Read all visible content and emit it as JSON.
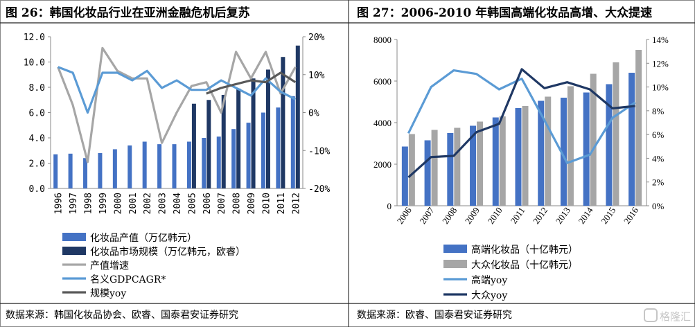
{
  "charts": [
    {
      "title": "图 26：韩国化妆品行业在亚洲金融危机后复苏",
      "source": "数据来源：韩国化妆品协会、欧睿、国泰君安证券研究",
      "colors": {
        "production": "#4472c4",
        "market": "#1f3864",
        "production_growth": "#a6a6a6",
        "gdp_cagr": "#5b9bd5",
        "market_yoy": "#595959"
      },
      "left_ticks": [
        "12.0",
        "10.0",
        "8.0",
        "6.0",
        "4.0",
        "2.0",
        "0.0"
      ],
      "right_ticks": [
        "20%",
        "10%",
        "0%",
        "-10%",
        "-20%"
      ]
    },
    {
      "title": "图 27：2006-2010 年韩国高端化妆品高增、大众提速",
      "source": "数据来源：欧睿、国泰君安证券研究",
      "colors": {
        "premium": "#4472c4",
        "mass": "#a6a6a6",
        "premium_yoy": "#5b9bd5",
        "mass_yoy": "#1f3864"
      },
      "left_ticks": [
        "8000",
        "6000",
        "4000",
        "2000",
        "0"
      ],
      "right_ticks": [
        "14%",
        "12%",
        "10%",
        "8%",
        "6%",
        "4%",
        "2%",
        "0%"
      ]
    }
  ],
  "watermark": "格隆汇",
  "chart_data": [
    {
      "type": "bar",
      "title": "图 26：韩国化妆品行业在亚洲金融危机后复苏",
      "categories": [
        "1996",
        "1997",
        "1998",
        "1999",
        "2000",
        "2001",
        "2002",
        "2003",
        "2004",
        "2005",
        "2006",
        "2007",
        "2008",
        "2009",
        "2010",
        "2011",
        "2012"
      ],
      "ylim": [
        0,
        12
      ],
      "y2lim": [
        -0.2,
        0.2
      ],
      "series": [
        {
          "name": "化妆品产值（万亿韩元）",
          "type": "bar",
          "axis": "left",
          "values": [
            2.7,
            2.75,
            2.4,
            2.8,
            3.1,
            3.4,
            3.7,
            3.5,
            3.5,
            3.7,
            4.0,
            4.1,
            4.7,
            5.2,
            6.0,
            6.4,
            7.3
          ]
        },
        {
          "name": "化妆品市场规模（万亿韩元，欧睿）",
          "type": "bar",
          "axis": "left",
          "values": [
            null,
            null,
            null,
            null,
            null,
            null,
            null,
            null,
            null,
            6.7,
            7.0,
            7.4,
            7.9,
            8.7,
            9.4,
            10.4,
            11.3
          ]
        },
        {
          "name": "产值增速",
          "type": "line",
          "axis": "right",
          "values": [
            0.12,
            0.02,
            -0.13,
            0.17,
            0.11,
            0.09,
            0.09,
            -0.08,
            0.0,
            0.07,
            0.08,
            0.0,
            0.16,
            0.09,
            0.16,
            0.05,
            0.12
          ]
        },
        {
          "name": "名义GDPCAGR*",
          "type": "line",
          "axis": "right",
          "values": [
            0.12,
            0.105,
            0.0,
            0.105,
            0.105,
            0.085,
            0.11,
            0.065,
            0.085,
            0.06,
            0.06,
            0.085,
            0.065,
            0.045,
            0.09,
            0.055,
            0.035
          ]
        },
        {
          "name": "规模yoy",
          "type": "line",
          "axis": "right",
          "values": [
            null,
            null,
            null,
            null,
            null,
            null,
            null,
            null,
            null,
            null,
            0.05,
            0.065,
            0.075,
            0.085,
            0.08,
            0.105,
            0.08
          ]
        }
      ]
    },
    {
      "type": "bar",
      "title": "图 27：2006-2010 年韩国高端化妆品高增、大众提速",
      "categories": [
        "2006",
        "2007",
        "2008",
        "2009",
        "2010",
        "2011",
        "2012",
        "2013",
        "2014",
        "2015",
        "2016"
      ],
      "ylim": [
        0,
        8000
      ],
      "y2lim": [
        0,
        0.14
      ],
      "series": [
        {
          "name": "高端化妆品（十亿韩元）",
          "type": "bar",
          "axis": "left",
          "values": [
            2850,
            3150,
            3500,
            3850,
            4250,
            4700,
            5050,
            5200,
            5450,
            5850,
            6400
          ]
        },
        {
          "name": "大众化妆品（十亿韩元）",
          "type": "bar",
          "axis": "left",
          "values": [
            3450,
            3650,
            3750,
            4050,
            4300,
            4800,
            5250,
            5750,
            6350,
            6900,
            7500
          ]
        },
        {
          "name": "高端yoy",
          "type": "line",
          "axis": "right",
          "values": [
            0.061,
            0.1,
            0.114,
            0.111,
            0.098,
            0.107,
            0.072,
            0.036,
            0.043,
            0.074,
            0.087
          ]
        },
        {
          "name": "大众yoy",
          "type": "line",
          "axis": "right",
          "values": [
            0.024,
            0.041,
            0.042,
            0.062,
            0.069,
            0.115,
            0.099,
            0.104,
            0.098,
            0.082,
            0.084
          ]
        }
      ]
    }
  ]
}
